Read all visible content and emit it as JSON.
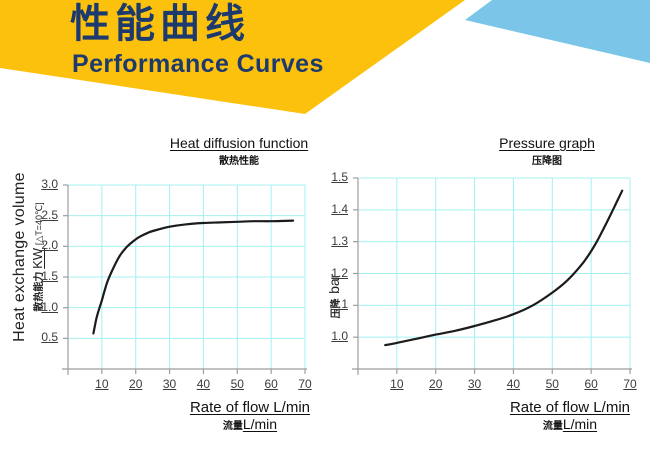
{
  "banner": {
    "title_cjk": "性能曲线",
    "title_en": "Performance Curves",
    "colors": {
      "yellow": "#FCC10D",
      "sky_blue": "#7AC5E8",
      "navy": "#1C3A6E"
    }
  },
  "style_colors": {
    "grid": "#A4F0F0",
    "axis": "#9E9E9E",
    "curve": "#1B1B1B",
    "tick_text": "#3C3C3C"
  },
  "chart_data": [
    {
      "type": "line",
      "title": "Heat diffusion function",
      "subtitle": "散热性能",
      "ylabel": "Heat exchange volume",
      "ylabel_cjk": "散热能力",
      "ylabel_unit": "KW",
      "ylabel_note": "[△T=40℃]",
      "xlabel": "Rate of flow L/min",
      "xlabel_cjk": "流量",
      "xlabel_unit": "L/min",
      "xlim": [
        0,
        70
      ],
      "ylim": [
        0,
        3.0
      ],
      "x_ticks": [
        10,
        20,
        30,
        40,
        50,
        60,
        70
      ],
      "y_ticks": [
        0.5,
        1.0,
        1.5,
        2.0,
        2.5,
        3.0
      ],
      "grid": true,
      "legend": false,
      "series": [
        {
          "name": "heat exchange capacity KW",
          "x": [
            7.5,
            8.5,
            10,
            11.5,
            13,
            15,
            17,
            19,
            21,
            24,
            27,
            30,
            35,
            40,
            45,
            50,
            55,
            60,
            66.5
          ],
          "y": [
            0.58,
            0.85,
            1.12,
            1.4,
            1.6,
            1.82,
            1.97,
            2.07,
            2.15,
            2.23,
            2.28,
            2.32,
            2.36,
            2.38,
            2.39,
            2.4,
            2.41,
            2.41,
            2.42
          ]
        }
      ]
    },
    {
      "type": "line",
      "title": "Pressure graph",
      "subtitle": "压降图",
      "ylabel_cjk": "压降",
      "ylabel_unit": "bar",
      "xlabel": "Rate of flow L/min",
      "xlabel_cjk": "流量",
      "xlabel_unit": "L/min",
      "xlim": [
        0,
        70
      ],
      "ylim": [
        0.9,
        1.5
      ],
      "x_ticks": [
        10,
        20,
        30,
        40,
        50,
        60,
        70
      ],
      "y_ticks": [
        1.0,
        1.1,
        1.2,
        1.3,
        1.4,
        1.5
      ],
      "grid": true,
      "legend": false,
      "series": [
        {
          "name": "pressure drop bar",
          "x": [
            7,
            10,
            15,
            20,
            25,
            30,
            35,
            40,
            45,
            50,
            54,
            58,
            61,
            64,
            66,
            68
          ],
          "y": [
            0.975,
            0.982,
            0.995,
            1.008,
            1.02,
            1.035,
            1.052,
            1.072,
            1.1,
            1.14,
            1.18,
            1.235,
            1.29,
            1.36,
            1.41,
            1.46
          ]
        }
      ]
    }
  ]
}
